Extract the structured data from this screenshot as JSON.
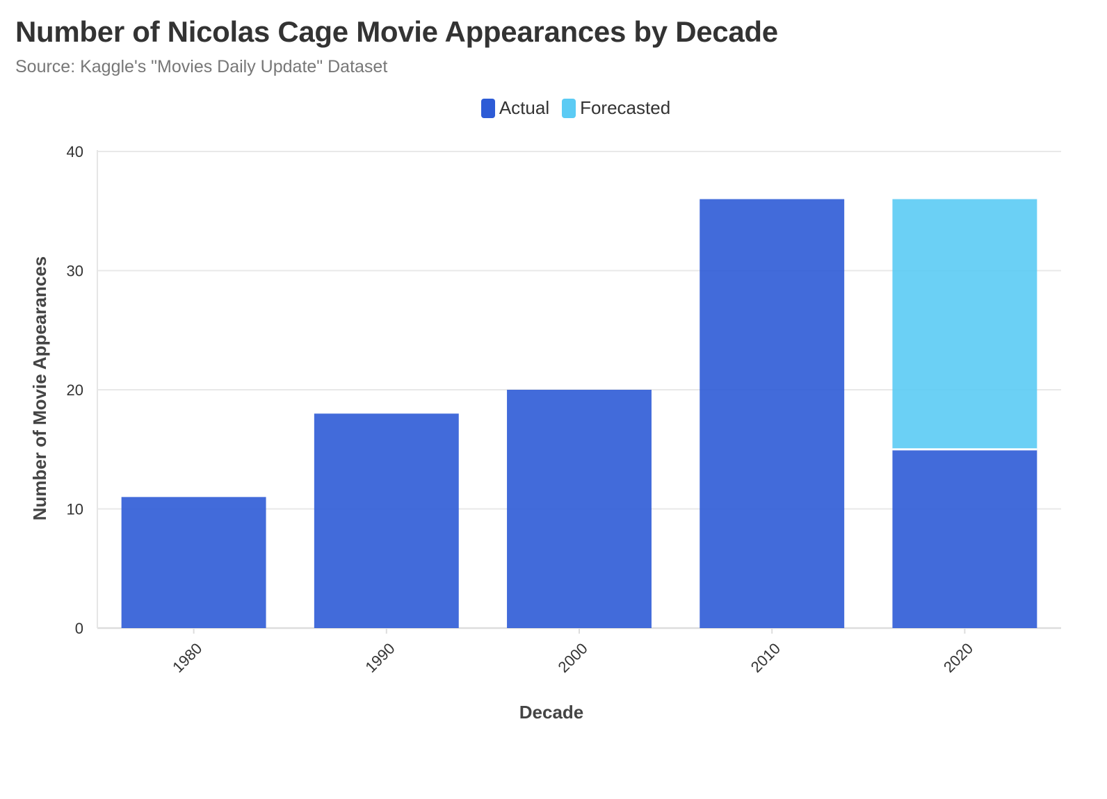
{
  "chart_data": {
    "type": "bar",
    "stacked": true,
    "title": "Number of Nicolas Cage Movie Appearances by Decade",
    "subtitle": "Source: Kaggle's \"Movies Daily Update\" Dataset",
    "xlabel": "Decade",
    "ylabel": "Number of Movie Appearances",
    "categories": [
      "1980",
      "1990",
      "2000",
      "2010",
      "2020"
    ],
    "series": [
      {
        "name": "Actual",
        "color": "#2d5bd6",
        "values": [
          11,
          18,
          20,
          36,
          15
        ]
      },
      {
        "name": "Forecasted",
        "color": "#5bcbf4",
        "values": [
          0,
          0,
          0,
          0,
          21
        ]
      }
    ],
    "ylim": [
      0,
      40
    ],
    "yticks": [
      "0",
      "10",
      "20",
      "30",
      "40"
    ],
    "grid": true,
    "legend_position": "top-center"
  }
}
